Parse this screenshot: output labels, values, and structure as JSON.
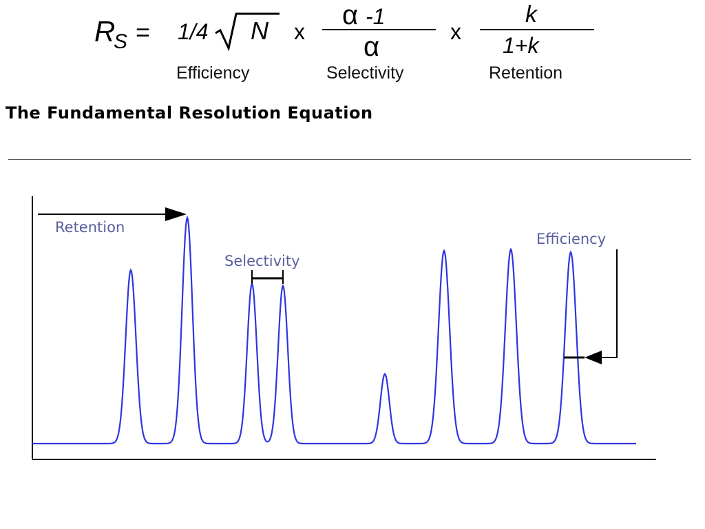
{
  "equation": {
    "lhs_symbol": "R",
    "lhs_sub": "S",
    "equals": "=",
    "term1_coef": "1/4",
    "term1_var": "N",
    "times1": "x",
    "term2_num": "α -1",
    "term2_den": "α",
    "times2": "x",
    "term3_num": "k",
    "term3_den": "1+k",
    "captions": [
      "Efficiency",
      "Selectivity",
      "Retention"
    ]
  },
  "title": "The Fundamental Resolution Equation",
  "chromatogram": {
    "labels": {
      "retention": "Retention",
      "selectivity": "Selectivity",
      "efficiency": "Efficiency"
    },
    "line_color": "#2f35e0",
    "annotation_color": "#5a5f9e"
  }
}
